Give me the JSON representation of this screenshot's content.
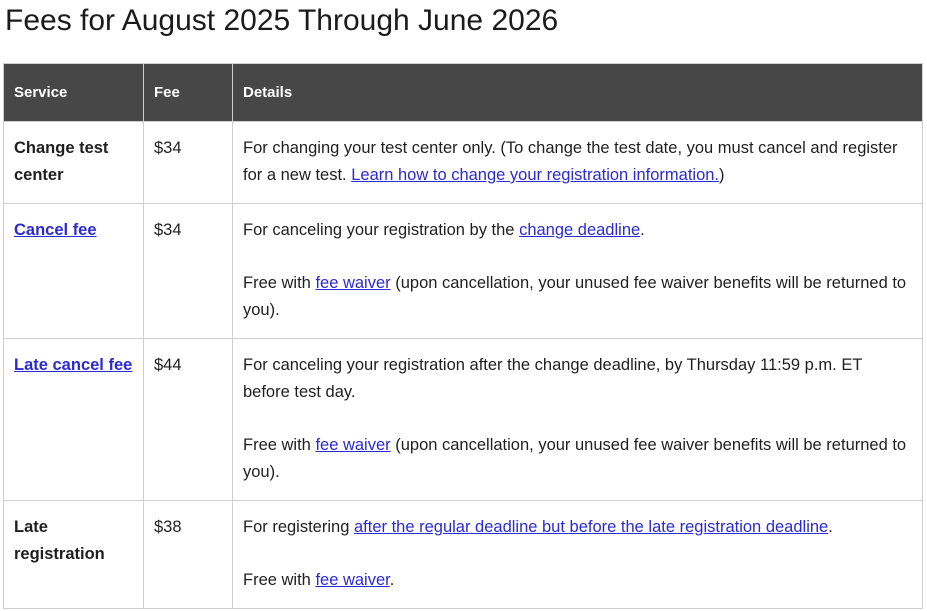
{
  "page": {
    "title": "Fees for August 2025 Through June 2026"
  },
  "colors": {
    "header_bg": "#474747",
    "header_text": "#ffffff",
    "link": "#2b2bd1",
    "border": "#cfcfcf",
    "body_text": "#1f1f1f"
  },
  "table": {
    "columns": [
      "Service",
      "Fee",
      "Details"
    ],
    "rows": [
      {
        "service": {
          "text": "Change test center",
          "link": false
        },
        "fee": "$34",
        "details": [
          [
            {
              "t": "For changing your test center only. (To change the test date, you must cancel and register for a new test. "
            },
            {
              "t": "Learn how to change your registration information.",
              "link": true
            },
            {
              "t": ")"
            }
          ]
        ]
      },
      {
        "service": {
          "text": "Cancel fee",
          "link": true
        },
        "fee": "$34",
        "details": [
          [
            {
              "t": "For canceling your registration by the "
            },
            {
              "t": "change deadline",
              "link": true
            },
            {
              "t": "."
            }
          ],
          [
            {
              "t": "Free with "
            },
            {
              "t": "fee waiver",
              "link": true
            },
            {
              "t": " (upon cancellation, your unused fee waiver benefits will be returned to you)."
            }
          ]
        ]
      },
      {
        "service": {
          "text": "Late cancel fee",
          "link": true
        },
        "fee": "$44",
        "details": [
          [
            {
              "t": "For canceling your registration after the change deadline, by Thursday 11:59 p.m. ET before test day."
            }
          ],
          [
            {
              "t": "Free with "
            },
            {
              "t": "fee waiver",
              "link": true
            },
            {
              "t": " (upon cancellation, your unused fee waiver benefits will be returned to you)."
            }
          ]
        ]
      },
      {
        "service": {
          "text": "Late registration",
          "link": false
        },
        "fee": "$38",
        "details": [
          [
            {
              "t": "For registering "
            },
            {
              "t": "after the regular deadline but before the late registration deadline",
              "link": true
            },
            {
              "t": "."
            }
          ],
          [
            {
              "t": "Free with "
            },
            {
              "t": "fee waiver",
              "link": true
            },
            {
              "t": "."
            }
          ]
        ]
      }
    ]
  }
}
